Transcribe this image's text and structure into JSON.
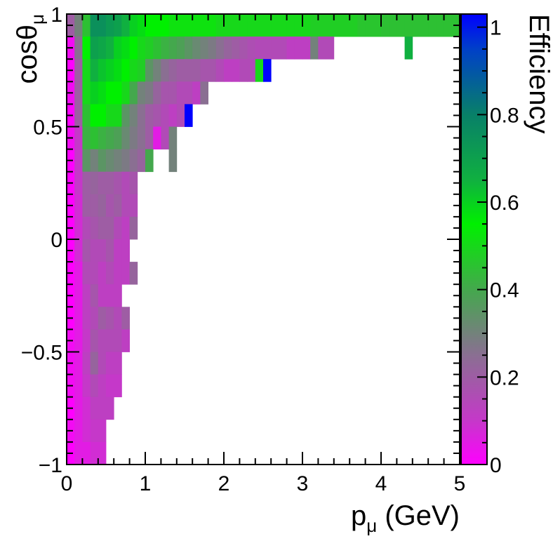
{
  "chart_data": {
    "type": "heatmap",
    "title": "",
    "xlabel": "p",
    "xlabel_sub": "μ",
    "xlabel_unit": " (GeV)",
    "ylabel": "cosθ",
    "ylabel_sub": "μ",
    "zlabel": "Efficiency",
    "xlim": [
      0,
      5
    ],
    "ylim": [
      -1,
      1
    ],
    "zlim": [
      0,
      1.03
    ],
    "x_ticks": [
      "0",
      "1",
      "2",
      "3",
      "4",
      "5"
    ],
    "x_tick_values": [
      0,
      1,
      2,
      3,
      4,
      5
    ],
    "y_ticks": [
      "−1",
      "−0.5",
      "0",
      "0.5",
      "1"
    ],
    "y_tick_values": [
      -1,
      -0.5,
      0,
      0.5,
      1
    ],
    "z_ticks": [
      "0",
      "0.2",
      "0.4",
      "0.6",
      "0.8",
      "1"
    ],
    "z_tick_values": [
      0,
      0.2,
      0.4,
      0.6,
      0.8,
      1
    ],
    "x_bin_width": 0.1,
    "y_bin_width": 0.1,
    "colormap": [
      "#ff00ff",
      "#c538c9",
      "#8a6f92",
      "#44a84d",
      "#00f000",
      "#10b040",
      "#088068",
      "#0040c8",
      "#0000ff"
    ],
    "colormap_stops": [
      0,
      0.1,
      0.25,
      0.4,
      0.55,
      0.65,
      0.8,
      0.95,
      1.03
    ],
    "rows": [
      {
        "y": 0.95,
        "x0": 0.0,
        "values": [
          0.2,
          0.3,
          0.45,
          0.75,
          0.75,
          0.72,
          0.7,
          0.65,
          0.6,
          0.58,
          0.55,
          0.55,
          0.55,
          0.52,
          0.52,
          0.52,
          0.52,
          0.52,
          0.52,
          0.5,
          0.5,
          0.5,
          0.5,
          0.5,
          0.5,
          0.5,
          0.5,
          0.5,
          0.5,
          0.5,
          0.5,
          0.48,
          0.48,
          0.48,
          0.48,
          0.48,
          0.48,
          0.46,
          0.46,
          0.46,
          0.45,
          0.45,
          0.45,
          0.45,
          0.45,
          0.45,
          0.45,
          0.45,
          0.45,
          0.45
        ]
      },
      {
        "y": 0.85,
        "x0": 0.0,
        "values": [
          0.02,
          0.25,
          0.55,
          0.7,
          0.68,
          0.65,
          0.6,
          0.58,
          0.55,
          0.5,
          0.48,
          0.45,
          0.42,
          0.4,
          0.38,
          0.35,
          0.32,
          0.3,
          0.28,
          0.25,
          0.22,
          0.2,
          0.18,
          0.16,
          0.15,
          0.15,
          0.15,
          0.15,
          0.12,
          0.12,
          0.12,
          0.3,
          0.15,
          0.15
        ]
      },
      {
        "y": 0.85,
        "x0": 4.3,
        "values": [
          0.65
        ]
      },
      {
        "y": 0.75,
        "x0": 0.0,
        "values": [
          0.0,
          0.2,
          0.5,
          0.65,
          0.62,
          0.6,
          0.58,
          0.55,
          0.5,
          0.48,
          0.35,
          0.3,
          0.25,
          0.22,
          0.2,
          0.2,
          0.2,
          0.18,
          0.18,
          0.15,
          0.12,
          0.12,
          0.15,
          0.15,
          0.5,
          1.03
        ]
      },
      {
        "y": 0.65,
        "x0": 0.0,
        "values": [
          0.02,
          0.2,
          0.5,
          0.6,
          0.58,
          0.55,
          0.55,
          0.5,
          0.4,
          0.3,
          0.28,
          0.22,
          0.18,
          0.18,
          0.15,
          0.15,
          0.12,
          0.25
        ]
      },
      {
        "y": 0.55,
        "x0": 0.0,
        "values": [
          0.0,
          0.2,
          0.45,
          0.55,
          0.55,
          0.5,
          0.5,
          0.35,
          0.3,
          0.25,
          0.2,
          0.18,
          0.15,
          0.12,
          0.15,
          1.03
        ]
      },
      {
        "y": 0.45,
        "x0": 0.0,
        "values": [
          0.02,
          0.1,
          0.42,
          0.45,
          0.42,
          0.4,
          0.38,
          0.32,
          0.28,
          0.25,
          0.2,
          0.05,
          0.15,
          0.3
        ]
      },
      {
        "y": 0.35,
        "x0": 0.0,
        "values": [
          0.0,
          0.1,
          0.35,
          0.3,
          0.35,
          0.32,
          0.3,
          0.28,
          0.25,
          0.22,
          0.4
        ]
      },
      {
        "y": 0.35,
        "x0": 1.3,
        "values": [
          0.3
        ]
      },
      {
        "y": 0.25,
        "x0": 0.0,
        "values": [
          0.0,
          0.1,
          0.2,
          0.22,
          0.2,
          0.2,
          0.18,
          0.15,
          0.18
        ]
      },
      {
        "y": 0.15,
        "x0": 0.0,
        "values": [
          0.0,
          0.08,
          0.2,
          0.2,
          0.22,
          0.18,
          0.2,
          0.15,
          0.15
        ]
      },
      {
        "y": 0.05,
        "x0": 0.0,
        "values": [
          0.0,
          0.08,
          0.15,
          0.18,
          0.2,
          0.2,
          0.15,
          0.12,
          0.22
        ]
      },
      {
        "y": -0.05,
        "x0": 0.0,
        "values": [
          0.0,
          0.08,
          0.18,
          0.15,
          0.15,
          0.18,
          0.12,
          0.12
        ]
      },
      {
        "y": -0.15,
        "x0": 0.0,
        "values": [
          0.0,
          0.05,
          0.15,
          0.15,
          0.12,
          0.15,
          0.12,
          0.12,
          0.22
        ]
      },
      {
        "y": -0.25,
        "x0": 0.0,
        "values": [
          0.0,
          0.05,
          0.12,
          0.18,
          0.12,
          0.12,
          0.12
        ]
      },
      {
        "y": -0.35,
        "x0": 0.0,
        "values": [
          0.0,
          0.05,
          0.12,
          0.15,
          0.2,
          0.18,
          0.15,
          0.2
        ]
      },
      {
        "y": -0.45,
        "x0": 0.0,
        "values": [
          0.02,
          0.05,
          0.1,
          0.18,
          0.15,
          0.15,
          0.15,
          0.12
        ]
      },
      {
        "y": -0.55,
        "x0": 0.0,
        "values": [
          0.02,
          0.05,
          0.12,
          0.22,
          0.15,
          0.12,
          0.12
        ]
      },
      {
        "y": -0.65,
        "x0": 0.0,
        "values": [
          0.02,
          0.05,
          0.1,
          0.15,
          0.12,
          0.1,
          0.1
        ]
      },
      {
        "y": -0.75,
        "x0": 0.0,
        "values": [
          0.0,
          0.05,
          0.08,
          0.12,
          0.12,
          0.12
        ]
      },
      {
        "y": -0.85,
        "x0": 0.0,
        "values": [
          0.02,
          0.05,
          0.08,
          0.1,
          0.1
        ]
      },
      {
        "y": -0.95,
        "x0": 0.0,
        "values": [
          0.0,
          0.05,
          0.05,
          0.08,
          0.08
        ]
      }
    ]
  }
}
